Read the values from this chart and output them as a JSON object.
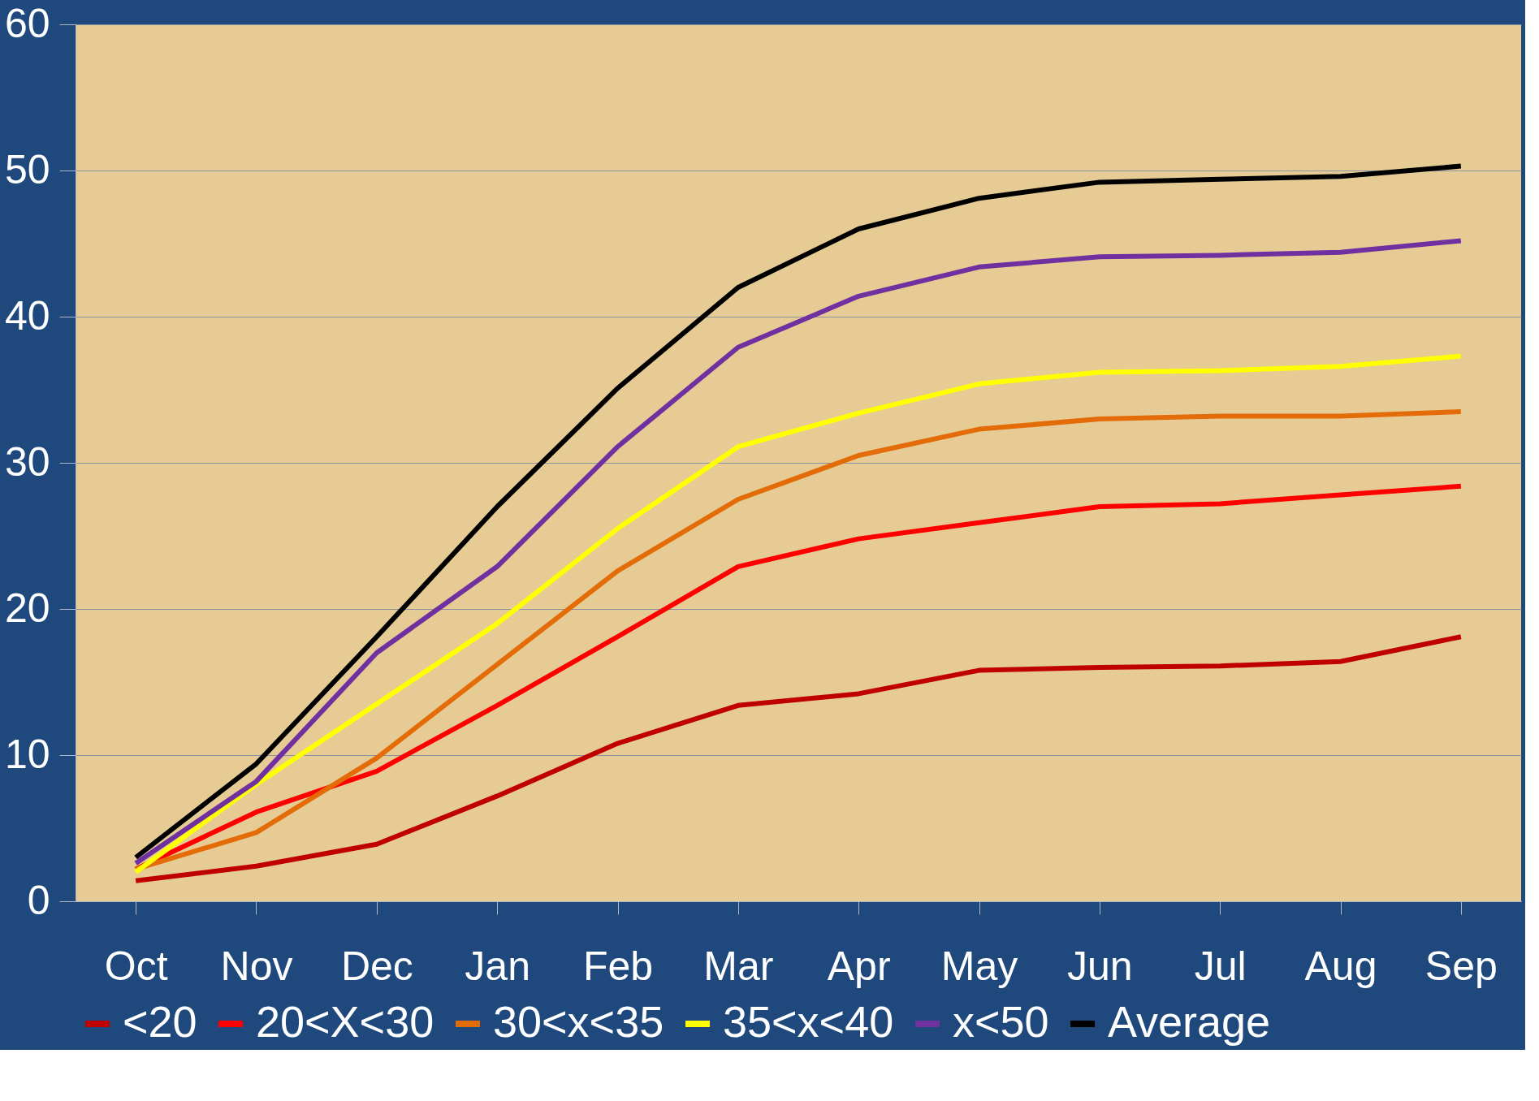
{
  "chart_data": {
    "type": "line",
    "categories": [
      "Oct",
      "Nov",
      "Dec",
      "Jan",
      "Feb",
      "Mar",
      "Apr",
      "May",
      "Jun",
      "Jul",
      "Aug",
      "Sep"
    ],
    "series": [
      {
        "name": "<20",
        "color": "#c00000",
        "values": [
          1.4,
          2.4,
          3.9,
          7.2,
          10.8,
          13.4,
          14.2,
          15.8,
          16.0,
          16.1,
          16.4,
          18.1
        ]
      },
      {
        "name": "20<X<30",
        "color": "#ff0000",
        "values": [
          2.2,
          6.1,
          8.9,
          13.4,
          18.1,
          22.9,
          24.8,
          25.9,
          27.0,
          27.2,
          27.8,
          28.4
        ]
      },
      {
        "name": "30<x<35",
        "color": "#e36c09",
        "values": [
          2.2,
          4.7,
          9.8,
          16.2,
          22.6,
          27.5,
          30.5,
          32.3,
          33.0,
          33.2,
          33.2,
          33.5
        ]
      },
      {
        "name": "35<x<40",
        "color": "#ffff00",
        "values": [
          2.0,
          8.0,
          13.5,
          19.0,
          25.5,
          31.1,
          33.4,
          35.4,
          36.2,
          36.3,
          36.6,
          37.3
        ]
      },
      {
        "name": "x<50",
        "color": "#7030a0",
        "values": [
          2.6,
          8.2,
          17.0,
          22.9,
          31.1,
          37.9,
          41.4,
          43.4,
          44.1,
          44.2,
          44.4,
          45.2
        ]
      },
      {
        "name": "Average",
        "color": "#000000",
        "values": [
          3.0,
          9.4,
          18.1,
          27.0,
          35.1,
          42.0,
          46.0,
          48.1,
          49.2,
          49.4,
          49.6,
          50.3
        ]
      }
    ],
    "ylim": [
      0,
      60
    ],
    "yticks": [
      0,
      10,
      20,
      30,
      40,
      50,
      60
    ],
    "grid": "y",
    "legend": "bottom",
    "marker": "none",
    "line_style": "solid"
  }
}
